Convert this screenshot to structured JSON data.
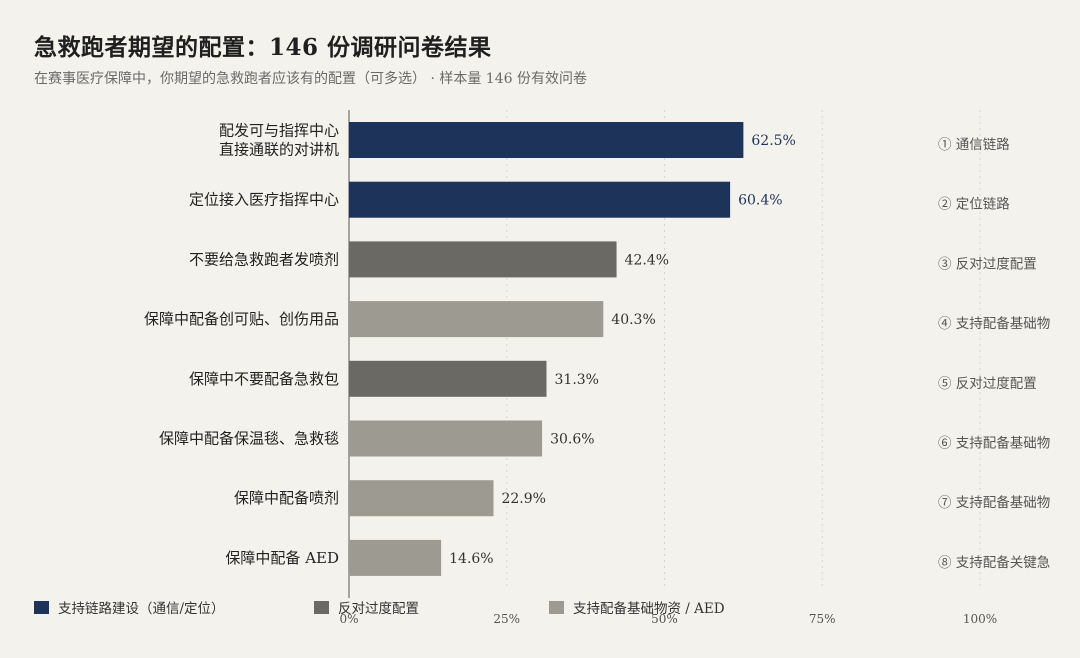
{
  "title": "急救跑者期望的配置：146 份调研问卷结果",
  "subtitle": "在赛事医疗保障中，你期望的急救跑者应该有的配置（可多选） · 样本量 146 份有效问卷",
  "colors": {
    "comm": "#1d3359",
    "oppose": "#6b6963",
    "support": "#9d9a92",
    "grid": "#d6d3cb",
    "axis": "#555555"
  },
  "legend": [
    {
      "label": "支持链路建设（通信/定位）",
      "color_key": "comm"
    },
    {
      "label": "反对过度配置",
      "color_key": "oppose"
    },
    {
      "label": "支持配备基础物资 / AED",
      "color_key": "support"
    }
  ],
  "chart_data": {
    "type": "bar",
    "orientation": "horizontal",
    "xlim": [
      0,
      100
    ],
    "ticks": [
      "0%",
      "25%",
      "50%",
      "75%",
      "100%"
    ],
    "tick_values": [
      0,
      25,
      50,
      75,
      100
    ],
    "grid": true,
    "legend_position": "bottom-left",
    "bars": [
      {
        "label_lines": [
          "配发可与指挥中心",
          "直接通联的对讲机"
        ],
        "value": 62.5,
        "value_label": "62.5%",
        "tag": "① 通信链路",
        "group": "comm"
      },
      {
        "label_lines": [
          "定位接入医疗指挥中心"
        ],
        "value": 60.4,
        "value_label": "60.4%",
        "tag": "② 定位链路",
        "group": "comm"
      },
      {
        "label_lines": [
          "不要给急救跑者发喷剂"
        ],
        "value": 42.4,
        "value_label": "42.4%",
        "tag": "③ 反对过度配置",
        "group": "oppose"
      },
      {
        "label_lines": [
          "保障中配备创可贴、创伤用品"
        ],
        "value": 40.3,
        "value_label": "40.3%",
        "tag": "④ 支持配备基础物",
        "group": "support"
      },
      {
        "label_lines": [
          "保障中不要配备急救包"
        ],
        "value": 31.3,
        "value_label": "31.3%",
        "tag": "⑤ 反对过度配置",
        "group": "oppose"
      },
      {
        "label_lines": [
          "保障中配备保温毯、急救毯"
        ],
        "value": 30.6,
        "value_label": "30.6%",
        "tag": "⑥ 支持配备基础物",
        "group": "support"
      },
      {
        "label_lines": [
          "保障中配备喷剂"
        ],
        "value": 22.9,
        "value_label": "22.9%",
        "tag": "⑦ 支持配备基础物",
        "group": "support"
      },
      {
        "label_lines": [
          "保障中配备 AED"
        ],
        "value": 14.6,
        "value_label": "14.6%",
        "tag": "⑧ 支持配备关键急",
        "group": "support"
      }
    ]
  }
}
